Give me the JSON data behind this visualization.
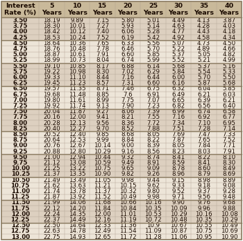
{
  "headers": [
    "Interest\nRate (%)",
    "5\nYears",
    "10\nYears",
    "15\nYears",
    "20\nYears",
    "25\nYears",
    "30\nYears",
    "35\nYears",
    "40\nYears"
  ],
  "rows": [
    [
      "3.50",
      "18.19",
      "9.89",
      "7.15",
      "5.80",
      "5.01",
      "4.49",
      "4.13",
      "3.87"
    ],
    [
      "3.75",
      "18.30",
      "10.01",
      "7.27",
      "5.93",
      "5.14",
      "4.63",
      "4.28",
      "4.03"
    ],
    [
      "4.00",
      "18.42",
      "10.12",
      "7.40",
      "6.06",
      "5.28",
      "4.77",
      "4.43",
      "4.18"
    ],
    [
      "4.25",
      "18.53",
      "10.24",
      "7.52",
      "6.19",
      "5.42",
      "4.92",
      "4.58",
      "4.34"
    ],
    [
      "4.50",
      "18.64",
      "10.36",
      "7.65",
      "6.33",
      "5.56",
      "5.07",
      "4.73",
      "4.50"
    ],
    [
      "4.75",
      "18.76",
      "10.48",
      "7.78",
      "6.46",
      "5.70",
      "5.22",
      "4.89",
      "4.66"
    ],
    [
      "5.00",
      "18.87",
      "10.61",
      "7.91",
      "6.60",
      "5.85",
      "5.37",
      "5.05",
      "4.82"
    ],
    [
      "5.25",
      "18.99",
      "10.73",
      "8.04",
      "6.74",
      "5.99",
      "5.52",
      "5.21",
      "4.99"
    ],
    [
      "5.50",
      "19.10",
      "10.85",
      "8.17",
      "6.88",
      "6.14",
      "5.68",
      "5.37",
      "5.16"
    ],
    [
      "5.75",
      "19.22",
      "10.98",
      "8.30",
      "7.02",
      "6.29",
      "5.84",
      "5.54",
      "5.33"
    ],
    [
      "6.00",
      "19.33",
      "11.10",
      "8.44",
      "7.16",
      "6.44",
      "6.00",
      "5.70",
      "5.50"
    ],
    [
      "6.25",
      "19.45",
      "11.23",
      "8.57",
      "7.31",
      "6.60",
      "6.16",
      "5.87",
      "5.68"
    ],
    [
      "6.50",
      "19.57",
      "11.35",
      "8.71",
      "7.46",
      "6.75",
      "6.32",
      "6.04",
      "5.85"
    ],
    [
      "6.75",
      "19.68",
      "11.48",
      "8.85",
      "7.6",
      "6.91",
      "6.49",
      "6.21",
      "6.03"
    ],
    [
      "7.00",
      "19.80",
      "11.61",
      "8.99",
      "7.75",
      "7.07",
      "6.65",
      "6.39",
      "6.21"
    ],
    [
      "7.25",
      "19.92",
      "11.74",
      "9.13",
      "7.90",
      "7.23",
      "6.82",
      "6.56",
      "6.40"
    ],
    [
      "7.50",
      "20.04",
      "11.87",
      "9.27",
      "8.06",
      "7.39",
      "6.99",
      "6.74",
      "6.58"
    ],
    [
      "7.75",
      "20.16",
      "12.00",
      "9.41",
      "8.21",
      "7.55",
      "7.16",
      "6.92",
      "6.77"
    ],
    [
      "8.00",
      "20.28",
      "12.13",
      "9.56",
      "8.36",
      "7.72",
      "7.34",
      "7.10",
      "6.95"
    ],
    [
      "8.25",
      "20.40",
      "12.27",
      "9.70",
      "8.52",
      "7.88",
      "7.51",
      "7.28",
      "7.14"
    ],
    [
      "8.50",
      "20.52",
      "12.40",
      "9.85",
      "8.68",
      "8.05",
      "7.69",
      "7.47",
      "7.33"
    ],
    [
      "8.75",
      "20.64",
      "12.53",
      "9.99",
      "8.84",
      "8.22",
      "7.87",
      "7.65",
      "7.52"
    ],
    [
      "9.00",
      "20.76",
      "12.67",
      "10.14",
      "9.00",
      "8.39",
      "8.05",
      "7.84",
      "7.71"
    ],
    [
      "9.25",
      "20.88",
      "12.80",
      "10.29",
      "9.16",
      "8.56",
      "8.23",
      "8.03",
      "7.91"
    ],
    [
      "9.50",
      "21.00",
      "12.94",
      "10.44",
      "9.32",
      "8.74",
      "8.41",
      "8.22",
      "8.10"
    ],
    [
      "9.75",
      "21.12",
      "13.08",
      "10.59",
      "9.49",
      "8.91",
      "8.59",
      "8.41",
      "8.30"
    ],
    [
      "10.00",
      "21.25",
      "13.22",
      "10.75",
      "9.65",
      "9.09",
      "8.78",
      "8.60",
      "8.49"
    ],
    [
      "10.25",
      "21.37",
      "13.35",
      "10.90",
      "9.82",
      "9.26",
      "8.96",
      "8.79",
      "8.69"
    ],
    [
      "10.50",
      "21.49",
      "13.49",
      "11.05",
      "9.98",
      "9.44",
      "9.15",
      "8.98",
      "8.89"
    ],
    [
      "10.75",
      "21.62",
      "13.63",
      "11.21",
      "10.15",
      "9.62",
      "9.33",
      "9.18",
      "9.08"
    ],
    [
      "11.00",
      "21.74",
      "13.78",
      "11.37",
      "10.32",
      "9.80",
      "9.52",
      "9.37",
      "9.28"
    ],
    [
      "11.25",
      "21.87",
      "13.92",
      "11.52",
      "10.49",
      "9.98",
      "9.71",
      "9.56",
      "9.48"
    ],
    [
      "11.50",
      "21.99",
      "14.06",
      "11.68",
      "10.66",
      "10.16",
      "9.90",
      "9.76",
      "9.68"
    ],
    [
      "11.75",
      "22.12",
      "14.20",
      "11.84",
      "10.84",
      "10.35",
      "10.09",
      "9.96",
      "9.88"
    ],
    [
      "12.00",
      "22.24",
      "14.35",
      "12.00",
      "11.01",
      "10.53",
      "10.29",
      "10.16",
      "10.08"
    ],
    [
      "12.25",
      "22.37",
      "14.49",
      "12.16",
      "11.19",
      "10.72",
      "10.48",
      "10.35",
      "10.29"
    ],
    [
      "12.50",
      "22.50",
      "14.64",
      "12.33",
      "11.36",
      "10.9",
      "10.67",
      "10.55",
      "10.49"
    ],
    [
      "12.75",
      "22.63",
      "14.78",
      "12.49",
      "11.54",
      "11.09",
      "10.87",
      "10.75",
      "10.69"
    ],
    [
      "13.00",
      "22.75",
      "14.93",
      "12.65",
      "11.72",
      "11.28",
      "11.06",
      "10.95",
      "10.90"
    ]
  ],
  "header_bg": "#c9b99a",
  "group_a_bg": "#ddd0c0",
  "group_b_bg": "#ede5d8",
  "separator_color": "#b0a090",
  "border_color": "#8a7a60",
  "text_color": "#1a0a00",
  "header_font_size": 6.8,
  "cell_font_size": 6.2,
  "col_widths_rel": [
    1.5,
    1.0,
    1.0,
    1.0,
    1.0,
    1.0,
    1.0,
    1.0,
    1.0
  ],
  "fig_width": 3.5,
  "fig_height": 3.47,
  "dpi": 100
}
